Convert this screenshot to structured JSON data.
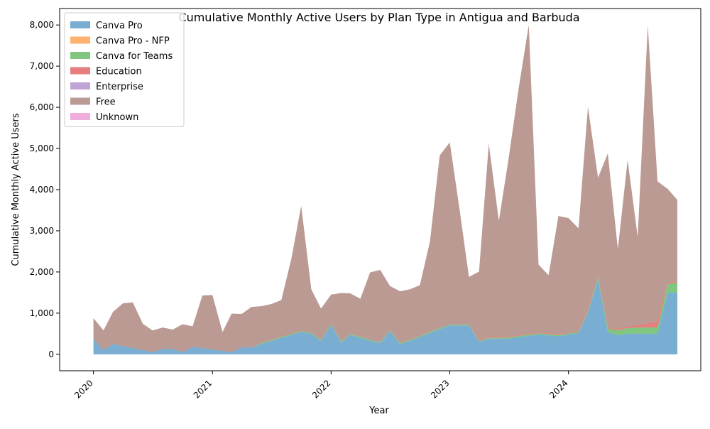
{
  "chart_data": {
    "type": "area",
    "stacked": true,
    "title": "Cumulative Monthly Active Users by Plan Type in Antigua and Barbuda",
    "xlabel": "Year",
    "ylabel": "Cumulative Monthly Active Users",
    "xlim": [
      "2019-09-19",
      "2025-02-11"
    ],
    "ylim": [
      -400,
      8400
    ],
    "x_ticks": [
      "2020-01-01",
      "2021-01-01",
      "2022-01-01",
      "2023-01-01",
      "2024-01-01"
    ],
    "x_tick_labels": [
      "2020",
      "2021",
      "2022",
      "2023",
      "2024"
    ],
    "y_ticks": [
      0,
      1000,
      2000,
      3000,
      4000,
      5000,
      6000,
      7000,
      8000
    ],
    "y_tick_labels": [
      "0",
      "1,000",
      "2,000",
      "3,000",
      "4,000",
      "5,000",
      "6,000",
      "7,000",
      "8,000"
    ],
    "legend_position": "upper left",
    "grid": false,
    "x": [
      "2020-01",
      "2020-02",
      "2020-03",
      "2020-04",
      "2020-05",
      "2020-06",
      "2020-07",
      "2020-08",
      "2020-09",
      "2020-10",
      "2020-11",
      "2020-12",
      "2021-01",
      "2021-02",
      "2021-03",
      "2021-04",
      "2021-05",
      "2021-06",
      "2021-07",
      "2021-08",
      "2021-09",
      "2021-10",
      "2021-11",
      "2021-12",
      "2022-01",
      "2022-02",
      "2022-03",
      "2022-04",
      "2022-05",
      "2022-06",
      "2022-07",
      "2022-08",
      "2022-09",
      "2022-10",
      "2022-11",
      "2022-12",
      "2023-01",
      "2023-02",
      "2023-03",
      "2023-04",
      "2023-05",
      "2023-06",
      "2023-07",
      "2023-08",
      "2023-09",
      "2023-10",
      "2023-11",
      "2023-12",
      "2024-01",
      "2024-02",
      "2024-03",
      "2024-04",
      "2024-05",
      "2024-06",
      "2024-07",
      "2024-08",
      "2024-09",
      "2024-10",
      "2024-11",
      "2024-12"
    ],
    "series": [
      {
        "name": "Canva Pro",
        "color": "#1f77b4",
        "values": [
          380,
          100,
          250,
          200,
          150,
          100,
          50,
          130,
          130,
          50,
          180,
          150,
          120,
          80,
          50,
          170,
          160,
          250,
          320,
          400,
          470,
          540,
          500,
          320,
          720,
          280,
          470,
          400,
          330,
          270,
          560,
          250,
          330,
          420,
          520,
          610,
          700,
          700,
          700,
          300,
          380,
          380,
          380,
          420,
          450,
          480,
          460,
          440,
          480,
          520,
          1000,
          1820,
          540,
          460,
          500,
          500,
          500,
          500,
          1500,
          1500
        ]
      },
      {
        "name": "Canva Pro - NFP",
        "color": "#ff7f0e",
        "values": [
          0,
          0,
          0,
          0,
          0,
          0,
          0,
          0,
          0,
          0,
          0,
          0,
          0,
          0,
          0,
          0,
          0,
          0,
          0,
          0,
          0,
          0,
          0,
          0,
          0,
          0,
          0,
          0,
          0,
          0,
          0,
          0,
          0,
          0,
          0,
          0,
          0,
          0,
          0,
          0,
          0,
          0,
          0,
          0,
          0,
          0,
          0,
          0,
          0,
          0,
          0,
          0,
          0,
          0,
          0,
          0,
          0,
          0,
          0,
          0
        ]
      },
      {
        "name": "Canva for Teams",
        "color": "#2ca02c",
        "values": [
          0,
          0,
          0,
          0,
          0,
          0,
          0,
          0,
          0,
          0,
          0,
          0,
          0,
          0,
          0,
          0,
          0,
          20,
          20,
          20,
          20,
          20,
          20,
          20,
          20,
          20,
          20,
          20,
          20,
          20,
          20,
          20,
          20,
          20,
          20,
          20,
          20,
          20,
          20,
          20,
          20,
          20,
          30,
          30,
          30,
          30,
          30,
          30,
          30,
          30,
          30,
          60,
          90,
          120,
          140,
          150,
          150,
          150,
          200,
          250
        ]
      },
      {
        "name": "Education",
        "color": "#d62728",
        "values": [
          0,
          0,
          0,
          0,
          0,
          0,
          0,
          0,
          0,
          0,
          0,
          0,
          0,
          0,
          0,
          0,
          0,
          0,
          0,
          0,
          0,
          0,
          0,
          0,
          0,
          0,
          0,
          0,
          0,
          0,
          0,
          0,
          0,
          0,
          0,
          0,
          0,
          0,
          0,
          20,
          20,
          20,
          20,
          20,
          20,
          20,
          20,
          20,
          20,
          20,
          20,
          20,
          20,
          30,
          40,
          60,
          100,
          150,
          30,
          30
        ]
      },
      {
        "name": "Enterprise",
        "color": "#9467bd",
        "values": [
          0,
          0,
          0,
          0,
          0,
          0,
          0,
          0,
          0,
          0,
          0,
          0,
          0,
          0,
          0,
          0,
          0,
          0,
          0,
          0,
          0,
          0,
          0,
          0,
          0,
          0,
          0,
          0,
          0,
          0,
          0,
          0,
          0,
          0,
          0,
          0,
          0,
          0,
          0,
          0,
          0,
          0,
          0,
          0,
          0,
          0,
          0,
          0,
          0,
          0,
          0,
          0,
          0,
          0,
          0,
          0,
          0,
          0,
          0,
          0
        ]
      },
      {
        "name": "Free",
        "color": "#8c564b",
        "values": [
          500,
          480,
          780,
          1040,
          1110,
          640,
          530,
          520,
          470,
          680,
          500,
          1280,
          1320,
          460,
          940,
          810,
          990,
          900,
          880,
          900,
          1840,
          3050,
          1060,
          770,
          710,
          1190,
          990,
          930,
          1640,
          1760,
          1080,
          1260,
          1230,
          1240,
          2200,
          4200,
          4430,
          2750,
          1160,
          1670,
          4690,
          2820,
          4330,
          6000,
          7500,
          1650,
          1410,
          2870,
          2780,
          2490,
          4960,
          2390,
          4230,
          1950,
          4040,
          2140,
          7240,
          3400,
          2290,
          1970
        ]
      },
      {
        "name": "Unknown",
        "color": "#e377c2",
        "values": [
          0,
          0,
          0,
          0,
          0,
          0,
          0,
          0,
          0,
          0,
          0,
          0,
          0,
          0,
          0,
          0,
          0,
          0,
          0,
          0,
          0,
          0,
          0,
          0,
          0,
          0,
          0,
          0,
          0,
          0,
          0,
          0,
          0,
          0,
          0,
          0,
          0,
          0,
          0,
          0,
          0,
          0,
          0,
          0,
          0,
          0,
          0,
          0,
          0,
          0,
          0,
          0,
          0,
          0,
          0,
          0,
          0,
          0,
          0,
          0
        ]
      }
    ]
  }
}
